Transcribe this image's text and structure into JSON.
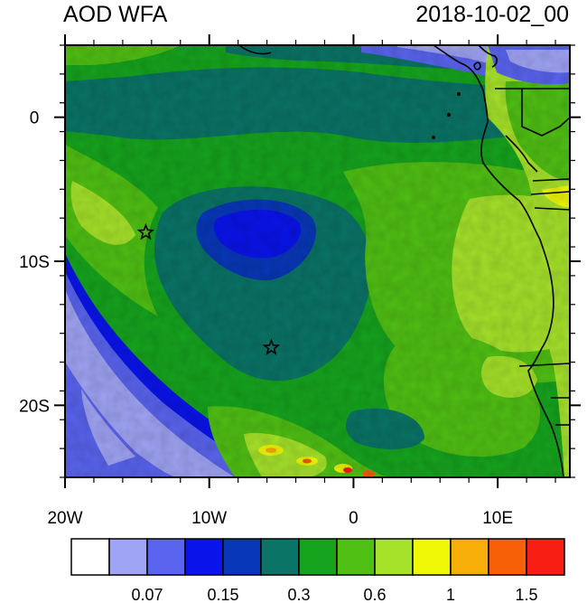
{
  "header": {
    "title": "AOD WFA",
    "timestamp": "2018-10-02_00"
  },
  "map": {
    "lon_range": [
      -20,
      15
    ],
    "lat_range": [
      -25,
      5
    ],
    "lon_ticks": [
      {
        "value": -20,
        "label": "20W"
      },
      {
        "value": -10,
        "label": "10W"
      },
      {
        "value": 0,
        "label": "0"
      },
      {
        "value": 10,
        "label": "10E"
      }
    ],
    "lat_ticks": [
      {
        "value": 0,
        "label": "0"
      },
      {
        "value": -10,
        "label": "10S"
      },
      {
        "value": -20,
        "label": "20S"
      }
    ],
    "markers": [
      {
        "name": "star",
        "lon": -14.4,
        "lat": -8.0
      },
      {
        "name": "star",
        "lon": -5.7,
        "lat": -16.0
      }
    ]
  },
  "colorbar": {
    "colors": [
      "#ffffff",
      "#a0a4f4",
      "#5a64ee",
      "#0a14ea",
      "#0838b8",
      "#0a7466",
      "#16a41e",
      "#50c014",
      "#a6e22a",
      "#f0f808",
      "#f8ae08",
      "#f86008",
      "#f81e14"
    ],
    "labels": [
      "0.07",
      "0.15",
      "0.3",
      "0.6",
      "1",
      "1.5"
    ]
  }
}
